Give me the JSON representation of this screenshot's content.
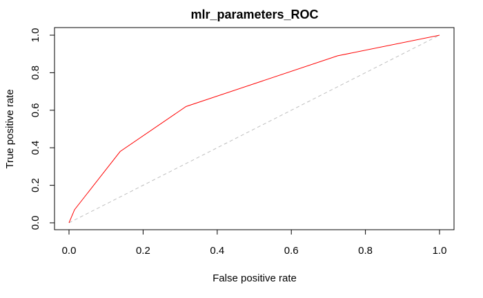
{
  "chart_data": {
    "type": "line",
    "title": "mlr_parameters_ROC",
    "xlabel": "False positive rate",
    "ylabel": "True positive rate",
    "xlim": [
      0,
      1
    ],
    "ylim": [
      0,
      1
    ],
    "x_ticks": [
      "0.0",
      "0.2",
      "0.4",
      "0.6",
      "0.8",
      "1.0"
    ],
    "y_ticks": [
      "0.0",
      "0.2",
      "0.4",
      "0.6",
      "0.8",
      "1.0"
    ],
    "grid": false,
    "series": [
      {
        "color": "#ff0000",
        "x": [
          0.0,
          0.015,
          0.138,
          0.316,
          0.725,
          1.0
        ],
        "y": [
          0.0,
          0.07,
          0.38,
          0.62,
          0.89,
          1.0
        ]
      },
      {
        "color": "#bebebe",
        "style": "dashed",
        "x": [
          0.0,
          1.0
        ],
        "y": [
          0.0,
          1.0
        ]
      }
    ]
  }
}
